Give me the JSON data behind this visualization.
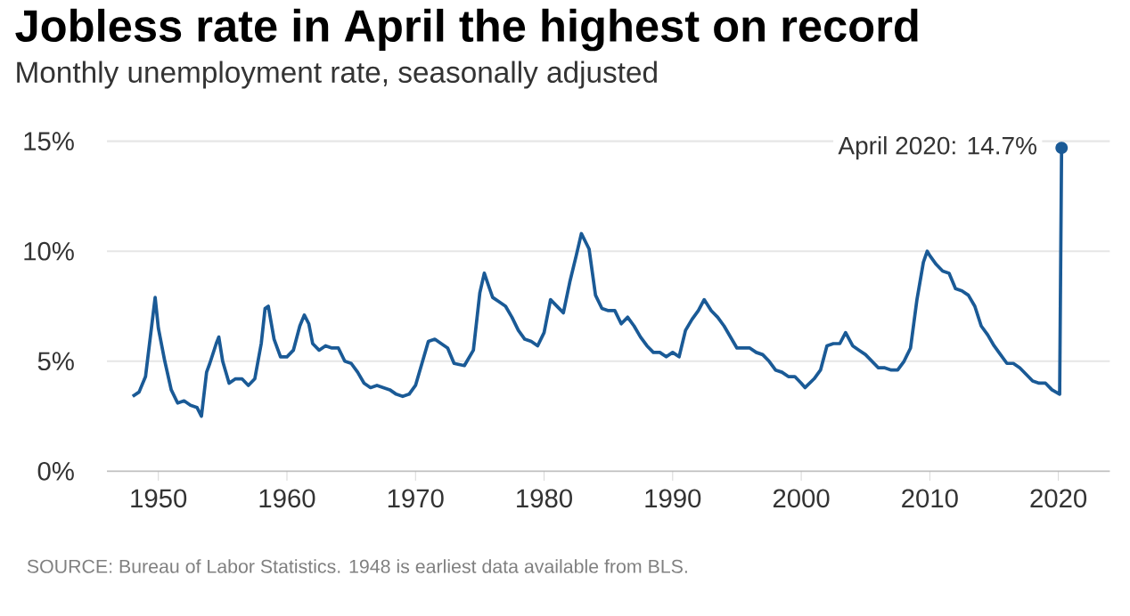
{
  "chart_data": {
    "type": "line",
    "title": "Jobless rate in April the highest on record",
    "subtitle": "Monthly unemployment rate, seasonally adjusted",
    "x": [
      1948.0,
      1948.5,
      1949.0,
      1949.5,
      1949.75,
      1950.0,
      1950.5,
      1951.0,
      1951.5,
      1952.0,
      1952.5,
      1953.0,
      1953.35,
      1953.75,
      1954.0,
      1954.5,
      1954.7,
      1955.0,
      1955.5,
      1956.0,
      1956.5,
      1957.0,
      1957.5,
      1958.0,
      1958.3,
      1958.55,
      1959.0,
      1959.5,
      1960.0,
      1960.5,
      1961.0,
      1961.35,
      1961.7,
      1962.0,
      1962.5,
      1963.0,
      1963.5,
      1964.0,
      1964.5,
      1965.0,
      1965.5,
      1966.0,
      1966.5,
      1967.0,
      1967.5,
      1968.0,
      1968.5,
      1969.0,
      1969.5,
      1970.0,
      1970.5,
      1971.0,
      1971.5,
      1972.0,
      1972.5,
      1973.0,
      1973.8,
      1974.5,
      1975.0,
      1975.35,
      1975.7,
      1976.0,
      1976.5,
      1977.0,
      1977.5,
      1978.0,
      1978.5,
      1979.0,
      1979.5,
      1980.0,
      1980.5,
      1981.0,
      1981.5,
      1982.0,
      1982.5,
      1982.9,
      1983.5,
      1984.0,
      1984.5,
      1985.0,
      1985.5,
      1986.0,
      1986.5,
      1987.0,
      1987.5,
      1988.0,
      1988.5,
      1989.0,
      1989.5,
      1990.0,
      1990.5,
      1991.0,
      1991.5,
      1992.0,
      1992.45,
      1993.0,
      1993.5,
      1994.0,
      1994.5,
      1995.0,
      1995.5,
      1996.0,
      1996.5,
      1997.0,
      1997.5,
      1998.0,
      1998.5,
      1999.0,
      1999.5,
      2000.0,
      2000.3,
      2001.0,
      2001.5,
      2002.0,
      2002.5,
      2003.0,
      2003.45,
      2004.0,
      2004.5,
      2005.0,
      2005.5,
      2006.0,
      2006.5,
      2007.0,
      2007.5,
      2008.0,
      2008.5,
      2009.0,
      2009.5,
      2009.8,
      2010.0,
      2010.5,
      2011.0,
      2011.5,
      2012.0,
      2012.5,
      2013.0,
      2013.5,
      2014.0,
      2014.5,
      2015.0,
      2015.5,
      2016.0,
      2016.5,
      2017.0,
      2017.5,
      2018.0,
      2018.5,
      2019.0,
      2019.5,
      2020.1,
      2020.25
    ],
    "series": [
      {
        "color": "#1a5a96",
        "values": [
          3.4,
          3.6,
          4.3,
          6.7,
          7.9,
          6.5,
          5.0,
          3.7,
          3.1,
          3.2,
          3.0,
          2.9,
          2.5,
          4.5,
          4.9,
          5.8,
          6.1,
          5.0,
          4.0,
          4.2,
          4.2,
          3.9,
          4.2,
          5.8,
          7.4,
          7.5,
          6.0,
          5.2,
          5.2,
          5.5,
          6.6,
          7.1,
          6.7,
          5.8,
          5.5,
          5.7,
          5.6,
          5.6,
          5.0,
          4.9,
          4.5,
          4.0,
          3.8,
          3.9,
          3.8,
          3.7,
          3.5,
          3.4,
          3.5,
          3.9,
          4.9,
          5.9,
          6.0,
          5.8,
          5.6,
          4.9,
          4.8,
          5.5,
          8.1,
          9.0,
          8.4,
          7.9,
          7.7,
          7.5,
          7.0,
          6.4,
          6.0,
          5.9,
          5.7,
          6.3,
          7.8,
          7.5,
          7.2,
          8.6,
          9.8,
          10.8,
          10.1,
          8.0,
          7.4,
          7.3,
          7.3,
          6.7,
          7.0,
          6.6,
          6.1,
          5.7,
          5.4,
          5.4,
          5.2,
          5.4,
          5.2,
          6.4,
          6.9,
          7.3,
          7.8,
          7.3,
          7.0,
          6.6,
          6.1,
          5.6,
          5.6,
          5.6,
          5.4,
          5.3,
          5.0,
          4.6,
          4.5,
          4.3,
          4.3,
          4.0,
          3.8,
          4.2,
          4.6,
          5.7,
          5.8,
          5.8,
          6.3,
          5.7,
          5.5,
          5.3,
          5.0,
          4.7,
          4.7,
          4.6,
          4.6,
          5.0,
          5.6,
          7.8,
          9.5,
          10.0,
          9.8,
          9.4,
          9.1,
          9.0,
          8.3,
          8.2,
          8.0,
          7.5,
          6.6,
          6.2,
          5.7,
          5.3,
          4.9,
          4.9,
          4.7,
          4.4,
          4.1,
          4.0,
          4.0,
          3.7,
          3.5,
          14.7
        ]
      }
    ],
    "xlim": [
      1946,
      2024
    ],
    "ylim": [
      0,
      15
    ],
    "xticks": [
      1950,
      1960,
      1970,
      1980,
      1990,
      2000,
      2010,
      2020
    ],
    "yticks": [
      {
        "value": 0,
        "label": "0%"
      },
      {
        "value": 5,
        "label": "5%"
      },
      {
        "value": 10,
        "label": "10%"
      },
      {
        "value": 15,
        "label": "15%"
      }
    ],
    "grid": "y",
    "annotations": [
      {
        "text": "April 2020: 14.7%",
        "x": 2020.25,
        "y": 14.7
      },
      "SOURCE: Bureau of Labor Statistics. 1948 is earliest data available from BLS."
    ]
  }
}
